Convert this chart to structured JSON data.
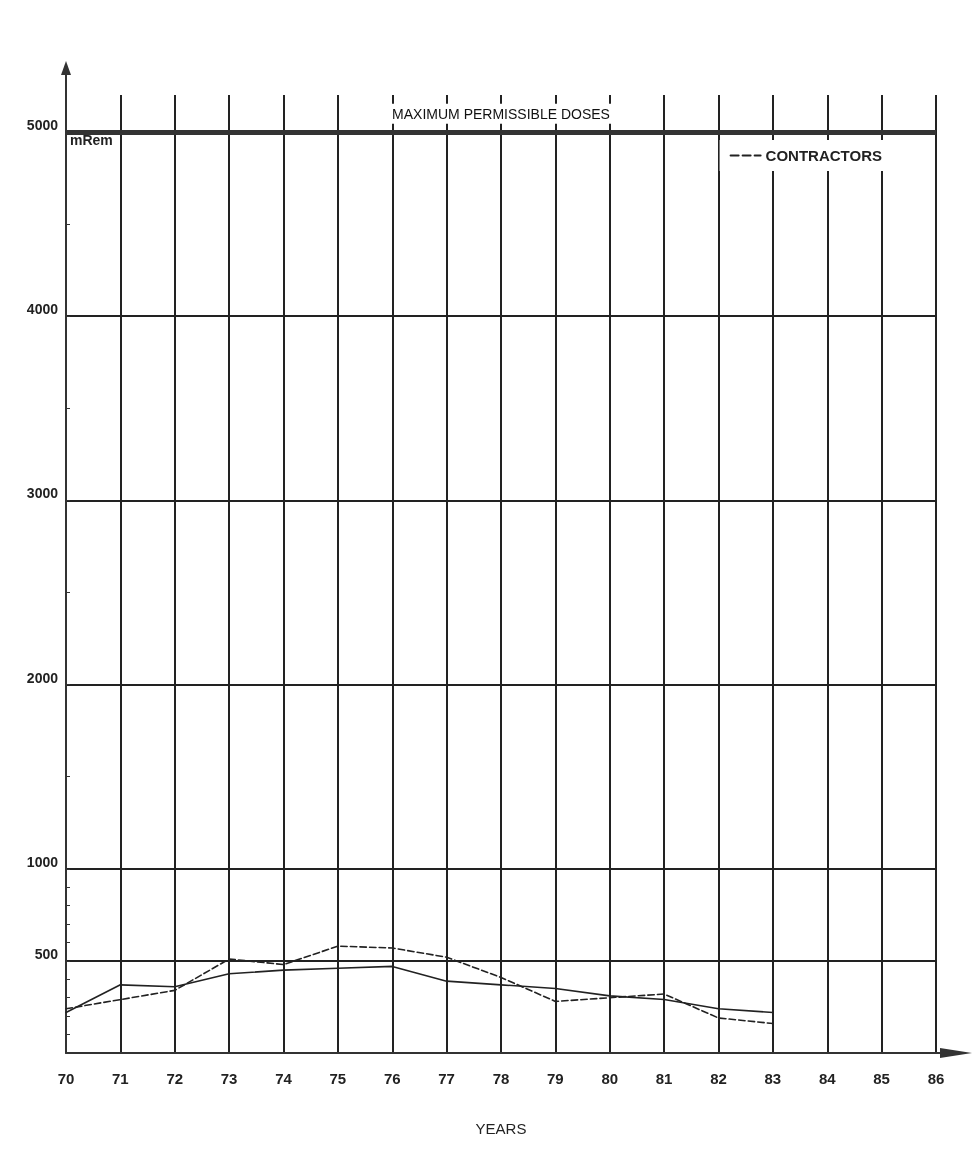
{
  "chart_data": {
    "type": "line",
    "xlabel": "YEARS",
    "ylabel": "mRem",
    "categories": [
      "70",
      "71",
      "72",
      "73",
      "74",
      "75",
      "76",
      "77",
      "78",
      "79",
      "80",
      "81",
      "82",
      "83",
      "84",
      "85",
      "86"
    ],
    "series": [
      {
        "color": "#222222",
        "line_style": "solid",
        "values": [
          220,
          370,
          360,
          430,
          450,
          460,
          470,
          390,
          370,
          350,
          310,
          290,
          240,
          220,
          null,
          null,
          null
        ]
      },
      {
        "name": "CONTRACTORS",
        "color": "#222222",
        "line_style": "dashed",
        "values": [
          240,
          290,
          340,
          510,
          480,
          580,
          570,
          520,
          410,
          280,
          300,
          320,
          190,
          160,
          null,
          null,
          null
        ]
      }
    ],
    "ylim": [
      0,
      5200
    ],
    "yticks": [
      {
        "value": 0,
        "label": null
      },
      {
        "value": 100,
        "label": null
      },
      {
        "value": 200,
        "label": null
      },
      {
        "value": 300,
        "label": null
      },
      {
        "value": 400,
        "label": null
      },
      500,
      {
        "value": 600,
        "label": null
      },
      {
        "value": 700,
        "label": null
      },
      {
        "value": 800,
        "label": null
      },
      {
        "value": 900,
        "label": null
      },
      1000,
      {
        "value": 1500,
        "label": null
      },
      2000,
      {
        "value": 2500,
        "label": null
      },
      3000,
      {
        "value": 3500,
        "label": null
      },
      4000,
      {
        "value": 4500,
        "label": null
      },
      5000
    ],
    "ref_lines": [
      {
        "axis": "y",
        "value": 5000,
        "label": "MAXIMUM PERMISSIBLE DOSES",
        "color": "#333333"
      }
    ],
    "grid": true,
    "legend": "top right",
    "marker": "none"
  }
}
